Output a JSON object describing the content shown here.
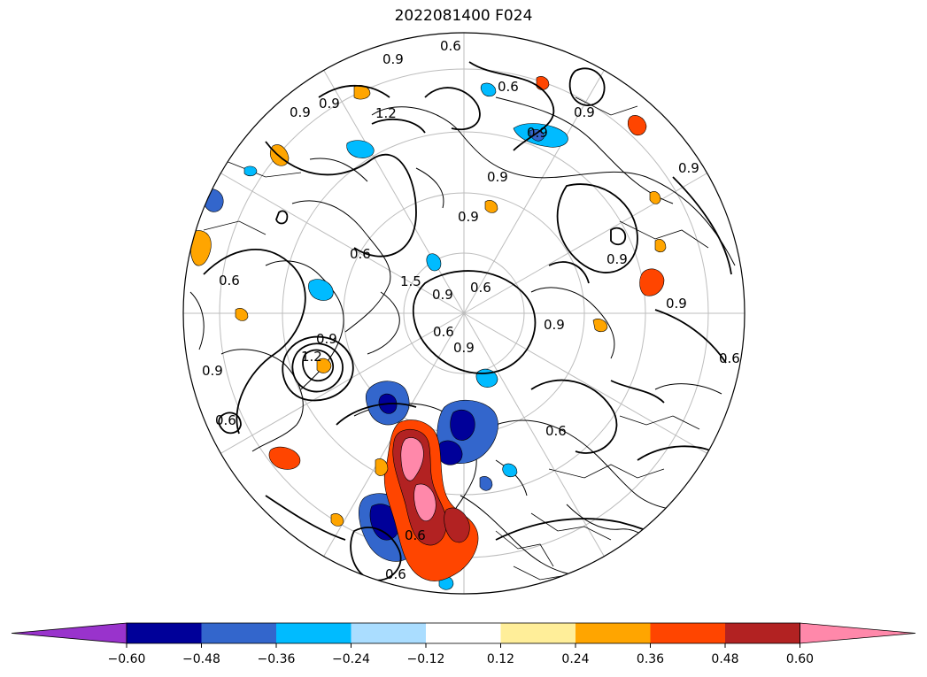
{
  "title": "2022081400 F024",
  "colorbar": {
    "colors": [
      "#9933cc",
      "#000099",
      "#3366cc",
      "#00bbff",
      "#aaddff",
      "#ffffff",
      "#ffee99",
      "#ffa500",
      "#ff4500",
      "#b22222",
      "#ff88aa"
    ],
    "tick_labels": [
      "−0.60",
      "−0.48",
      "−0.36",
      "−0.24",
      "−0.12",
      "0.12",
      "0.24",
      "0.36",
      "0.48",
      "0.60"
    ],
    "levels": [
      -0.6,
      -0.48,
      -0.36,
      -0.24,
      -0.12,
      0.12,
      0.24,
      0.36,
      0.48,
      0.6
    ],
    "extend": "both"
  },
  "map": {
    "projection": "north-polar-stereographic",
    "graticule": true,
    "features": [
      "coastlines",
      "country-borders"
    ]
  },
  "contour_labels": [
    "0.6",
    "0.9",
    "0.9",
    "0.9",
    "1.2",
    "0.9",
    "0.6",
    "0.9",
    "0.9",
    "0.9",
    "0.6",
    "0.9",
    "1.5",
    "0.9",
    "0.6",
    "0.9",
    "0.6",
    "0.9",
    "0.9",
    "0.9",
    "0.6",
    "0.6",
    "0.6",
    "1.2",
    "0.6",
    "0.9",
    "0.9",
    "0.6",
    "0.6"
  ]
}
